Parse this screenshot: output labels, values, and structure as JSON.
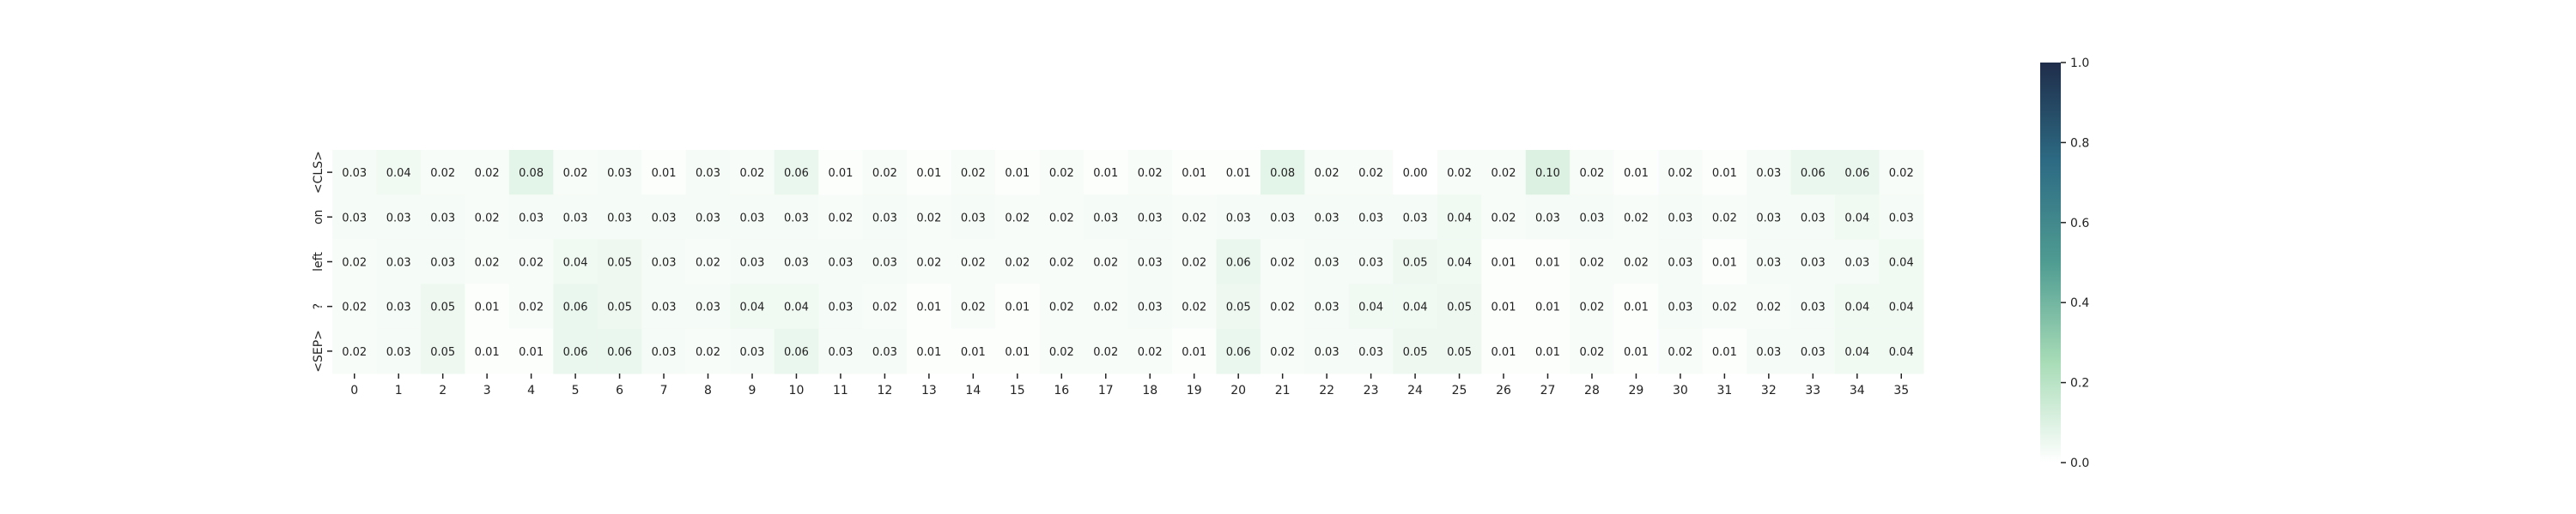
{
  "chart_data": {
    "type": "heatmap",
    "title": "",
    "xlabel": "",
    "ylabel": "",
    "x_labels": [
      "0",
      "1",
      "2",
      "3",
      "4",
      "5",
      "6",
      "7",
      "8",
      "9",
      "10",
      "11",
      "12",
      "13",
      "14",
      "15",
      "16",
      "17",
      "18",
      "19",
      "20",
      "21",
      "22",
      "23",
      "24",
      "25",
      "26",
      "27",
      "28",
      "29",
      "30",
      "31",
      "32",
      "33",
      "34",
      "35"
    ],
    "y_labels": [
      "<CLS>",
      "on",
      "left",
      "?",
      "<SEP>"
    ],
    "values": [
      [
        0.03,
        0.04,
        0.02,
        0.02,
        0.08,
        0.02,
        0.03,
        0.01,
        0.03,
        0.02,
        0.06,
        0.01,
        0.02,
        0.01,
        0.02,
        0.01,
        0.02,
        0.01,
        0.02,
        0.01,
        0.01,
        0.08,
        0.02,
        0.02,
        0.0,
        0.02,
        0.02,
        0.1,
        0.02,
        0.01,
        0.02,
        0.01,
        0.03,
        0.06,
        0.06,
        0.02
      ],
      [
        0.03,
        0.03,
        0.03,
        0.02,
        0.03,
        0.03,
        0.03,
        0.03,
        0.03,
        0.03,
        0.03,
        0.02,
        0.03,
        0.02,
        0.03,
        0.02,
        0.02,
        0.03,
        0.03,
        0.02,
        0.03,
        0.03,
        0.03,
        0.03,
        0.03,
        0.04,
        0.02,
        0.03,
        0.03,
        0.02,
        0.03,
        0.02,
        0.03,
        0.03,
        0.04,
        0.03
      ],
      [
        0.02,
        0.03,
        0.03,
        0.02,
        0.02,
        0.04,
        0.05,
        0.03,
        0.02,
        0.03,
        0.03,
        0.03,
        0.03,
        0.02,
        0.02,
        0.02,
        0.02,
        0.02,
        0.03,
        0.02,
        0.06,
        0.02,
        0.03,
        0.03,
        0.05,
        0.04,
        0.01,
        0.01,
        0.02,
        0.02,
        0.03,
        0.01,
        0.03,
        0.03,
        0.03,
        0.04
      ],
      [
        0.02,
        0.03,
        0.05,
        0.01,
        0.02,
        0.06,
        0.05,
        0.03,
        0.03,
        0.04,
        0.04,
        0.03,
        0.02,
        0.01,
        0.02,
        0.01,
        0.02,
        0.02,
        0.03,
        0.02,
        0.05,
        0.02,
        0.03,
        0.04,
        0.04,
        0.05,
        0.01,
        0.01,
        0.02,
        0.01,
        0.03,
        0.02,
        0.02,
        0.03,
        0.04,
        0.04
      ],
      [
        0.02,
        0.03,
        0.05,
        0.01,
        0.01,
        0.06,
        0.06,
        0.03,
        0.02,
        0.03,
        0.06,
        0.03,
        0.03,
        0.01,
        0.01,
        0.01,
        0.02,
        0.02,
        0.02,
        0.01,
        0.06,
        0.02,
        0.03,
        0.03,
        0.05,
        0.05,
        0.01,
        0.01,
        0.02,
        0.01,
        0.02,
        0.01,
        0.03,
        0.03,
        0.04,
        0.04
      ]
    ],
    "value_format": "2-decimals",
    "grid": false,
    "colorbar": {
      "vmin": 0.0,
      "vmax": 1.0,
      "ticks": [
        "0.0",
        "0.2",
        "0.4",
        "0.6",
        "0.8",
        "1.0"
      ],
      "placement": "right",
      "colormap_stops": [
        "#ffffff",
        "#a8dcb7",
        "#4f9c92",
        "#2d6b84",
        "#1f2d4a"
      ]
    },
    "legend": "none"
  }
}
